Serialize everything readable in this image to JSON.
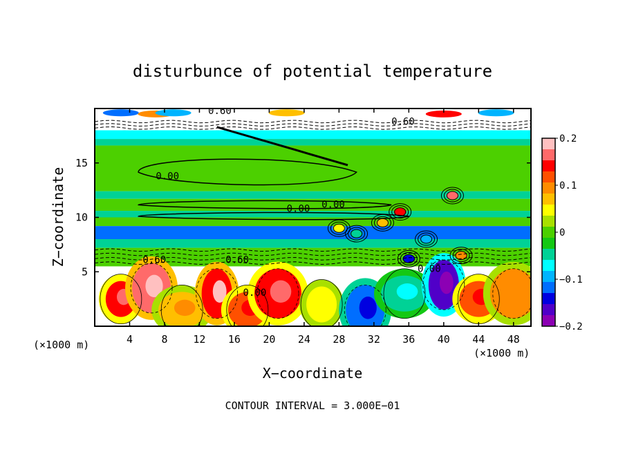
{
  "chart_data": {
    "type": "heatmap",
    "title": "disturbunce of potential temperature",
    "xlabel": "X−coordinate",
    "ylabel": "Z−coordinate",
    "x_unit_left": "(×1000 m)",
    "x_unit_right": "(×1000 m)",
    "xlim": [
      0,
      50
    ],
    "ylim": [
      0,
      20
    ],
    "x_ticks": [
      4,
      8,
      12,
      16,
      20,
      24,
      28,
      32,
      36,
      40,
      44,
      48
    ],
    "y_ticks": [
      5,
      10,
      15
    ],
    "colorbar": {
      "range": [
        -0.2,
        0.2
      ],
      "ticks": [
        "0.2",
        "0.1",
        "0",
        "−0.1",
        "−0.2"
      ],
      "colors": [
        "#ffc0c0",
        "#ff6a6a",
        "#ff0000",
        "#ff5000",
        "#ff8c00",
        "#ffbf00",
        "#ffff00",
        "#a8e000",
        "#4cd000",
        "#14c814",
        "#00d296",
        "#00ffff",
        "#00b4ff",
        "#006eff",
        "#0000e0",
        "#5000c8",
        "#8c00b4"
      ]
    },
    "contour_labels": [
      "0.60",
      "0.60",
      "0.00",
      "0.00",
      "0.00",
      "0.60",
      "0.60",
      "0.00",
      "0.00"
    ],
    "bands": [
      {
        "z_min": 19.0,
        "z_max": 20.0,
        "value": 0.0
      },
      {
        "z_min": 18.0,
        "z_max": 19.0,
        "value": 0.0
      },
      {
        "z_min": 17.2,
        "z_max": 18.0,
        "value": -0.08
      },
      {
        "z_min": 16.6,
        "z_max": 17.2,
        "value": -0.05
      },
      {
        "z_min": 12.4,
        "z_max": 16.6,
        "value": 0.01
      },
      {
        "z_min": 11.7,
        "z_max": 12.4,
        "value": -0.05
      },
      {
        "z_min": 10.6,
        "z_max": 11.7,
        "value": 0.01
      },
      {
        "z_min": 10.0,
        "z_max": 10.6,
        "value": -0.06
      },
      {
        "z_min": 9.2,
        "z_max": 10.0,
        "value": 0.0
      },
      {
        "z_min": 8.0,
        "z_max": 9.2,
        "value": -0.13
      },
      {
        "z_min": 7.2,
        "z_max": 8.0,
        "value": -0.05
      },
      {
        "z_min": 5.5,
        "z_max": 7.2,
        "value": 0.0
      }
    ],
    "lower_blobs": [
      {
        "x": 3.0,
        "z": 2.5,
        "value": 0.15
      },
      {
        "x": 6.5,
        "z": 3.5,
        "value": 0.18
      },
      {
        "x": 10.0,
        "z": 1.5,
        "value": 0.08
      },
      {
        "x": 14.0,
        "z": 3.0,
        "value": 0.16
      },
      {
        "x": 17.5,
        "z": 1.5,
        "value": 0.12
      },
      {
        "x": 21.0,
        "z": 3.0,
        "value": 0.14
      },
      {
        "x": 26.0,
        "z": 2.0,
        "value": 0.05
      },
      {
        "x": 31.0,
        "z": 1.5,
        "value": -0.12
      },
      {
        "x": 35.5,
        "z": 3.0,
        "value": -0.06
      },
      {
        "x": 40.0,
        "z": 3.8,
        "value": -0.18
      },
      {
        "x": 44.0,
        "z": 2.5,
        "value": 0.13
      },
      {
        "x": 48.0,
        "z": 3.0,
        "value": 0.09
      }
    ],
    "top_spots": [
      {
        "x": 3.0,
        "z": 19.6,
        "value": -0.12
      },
      {
        "x": 7.0,
        "z": 19.5,
        "value": 0.1
      },
      {
        "x": 9.0,
        "z": 19.6,
        "value": -0.1
      },
      {
        "x": 22.0,
        "z": 19.6,
        "value": 0.08
      },
      {
        "x": 40.0,
        "z": 19.5,
        "value": 0.15
      },
      {
        "x": 46.0,
        "z": 19.6,
        "value": -0.1
      }
    ],
    "storm_cells": [
      {
        "x": 28,
        "z": 9.0,
        "value": 0.05
      },
      {
        "x": 30,
        "z": 8.5,
        "value": -0.05
      },
      {
        "x": 33,
        "z": 9.5,
        "value": 0.08
      },
      {
        "x": 35,
        "z": 10.5,
        "value": 0.15
      },
      {
        "x": 38,
        "z": 8.0,
        "value": -0.1
      },
      {
        "x": 41,
        "z": 12.0,
        "value": 0.18
      },
      {
        "x": 42,
        "z": 6.5,
        "value": 0.1
      },
      {
        "x": 36,
        "z": 6.2,
        "value": -0.15
      }
    ]
  },
  "footer": {
    "contour_interval": "CONTOUR INTERVAL = 3.000E−01"
  }
}
